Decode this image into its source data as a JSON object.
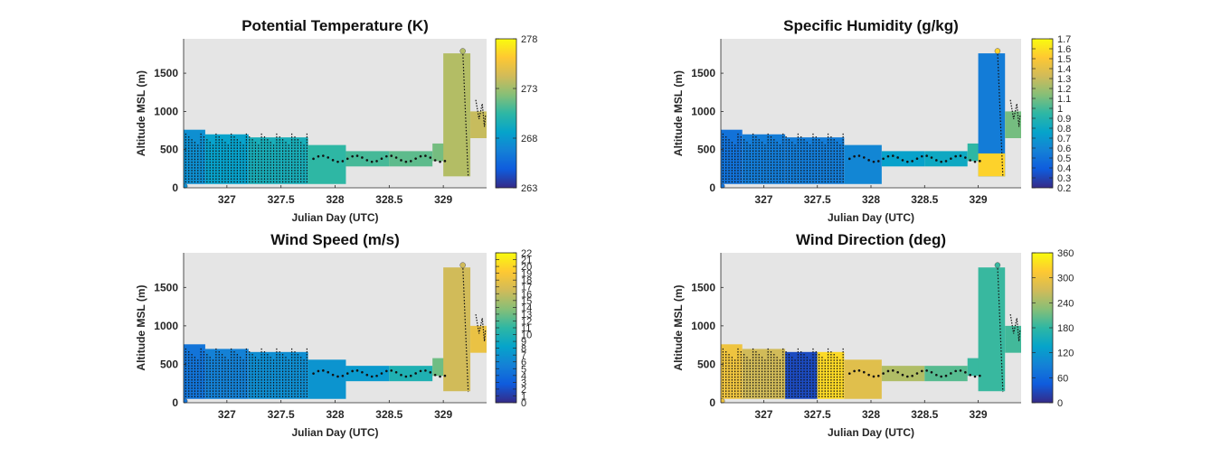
{
  "chart_data": [
    {
      "type": "heatmap",
      "title": "Potential Temperature (K)",
      "xlabel": "Julian Day (UTC)",
      "ylabel": "Altitude MSL (m)",
      "xlim": [
        326.6,
        329.4
      ],
      "ylim": [
        0,
        1950
      ],
      "xticks": [
        "327",
        "327.5",
        "328",
        "328.5",
        "329"
      ],
      "yticks": [
        "0",
        "500",
        "1000",
        "1500"
      ],
      "colorbar": {
        "min": 263,
        "max": 278,
        "ticks": [
          "263",
          "268",
          "273",
          "278"
        ]
      },
      "grid": false,
      "background": "#e5e5e5",
      "colormap": [
        "#352a87",
        "#0f5cdd",
        "#1481d6",
        "#06a4ca",
        "#2eb7a4",
        "#87bf77",
        "#d1bb59",
        "#fec832",
        "#f9fb0e"
      ],
      "segments": [
        {
          "x": [
            326.6,
            326.8
          ],
          "y": [
            50,
            760
          ],
          "value": 267.5
        },
        {
          "x": [
            326.8,
            327.2
          ],
          "y": [
            50,
            700
          ],
          "value": 268.5
        },
        {
          "x": [
            327.2,
            327.75
          ],
          "y": [
            50,
            660
          ],
          "value": 269.5
        },
        {
          "x": [
            327.75,
            328.1
          ],
          "y": [
            50,
            560
          ],
          "value": 270.5
        },
        {
          "x": [
            328.1,
            328.5
          ],
          "y": [
            280,
            480
          ],
          "value": 271.0
        },
        {
          "x": [
            328.5,
            328.9
          ],
          "y": [
            280,
            480
          ],
          "value": 271.5
        },
        {
          "x": [
            328.9,
            329.05
          ],
          "y": [
            350,
            580
          ],
          "value": 272.0
        },
        {
          "x": [
            329.0,
            329.25
          ],
          "y": [
            150,
            1760
          ],
          "value": 273.5
        },
        {
          "x": [
            329.25,
            329.4
          ],
          "y": [
            650,
            1000
          ],
          "value": 274.0
        }
      ]
    },
    {
      "type": "heatmap",
      "title": "Specific Humidity (g/kg)",
      "xlabel": "Julian Day (UTC)",
      "ylabel": "Altitude MSL (m)",
      "xlim": [
        326.6,
        329.4
      ],
      "ylim": [
        0,
        1950
      ],
      "xticks": [
        "327",
        "327.5",
        "328",
        "328.5",
        "329"
      ],
      "yticks": [
        "0",
        "500",
        "1000",
        "1500"
      ],
      "colorbar": {
        "min": 0.2,
        "max": 1.7,
        "ticks": [
          "0.2",
          "0.3",
          "0.4",
          "0.5",
          "0.6",
          "0.7",
          "0.8",
          "0.9",
          "1",
          "1.1",
          "1.2",
          "1.3",
          "1.4",
          "1.5",
          "1.6",
          "1.7"
        ]
      },
      "grid": false,
      "background": "#e5e5e5",
      "segments": [
        {
          "x": [
            326.6,
            326.8
          ],
          "y": [
            50,
            760
          ],
          "value": 0.5
        },
        {
          "x": [
            326.8,
            327.2
          ],
          "y": [
            50,
            700
          ],
          "value": 0.55
        },
        {
          "x": [
            327.2,
            327.75
          ],
          "y": [
            50,
            660
          ],
          "value": 0.55
        },
        {
          "x": [
            327.75,
            328.1
          ],
          "y": [
            50,
            560
          ],
          "value": 0.6
        },
        {
          "x": [
            328.1,
            328.5
          ],
          "y": [
            280,
            480
          ],
          "value": 0.75
        },
        {
          "x": [
            328.5,
            328.9
          ],
          "y": [
            280,
            480
          ],
          "value": 0.8
        },
        {
          "x": [
            328.9,
            329.05
          ],
          "y": [
            350,
            580
          ],
          "value": 0.95
        },
        {
          "x": [
            329.0,
            329.25
          ],
          "y": [
            150,
            1760
          ],
          "value": 0.55
        },
        {
          "x": [
            329.0,
            329.25
          ],
          "y": [
            150,
            450
          ],
          "value": 1.55
        },
        {
          "x": [
            329.25,
            329.4
          ],
          "y": [
            650,
            1000
          ],
          "value": 1.1
        }
      ]
    },
    {
      "type": "heatmap",
      "title": "Wind Speed (m/s)",
      "xlabel": "Julian Day (UTC)",
      "ylabel": "Altitude MSL (m)",
      "xlim": [
        326.6,
        329.4
      ],
      "ylim": [
        0,
        1950
      ],
      "xticks": [
        "327",
        "327.5",
        "328",
        "328.5",
        "329"
      ],
      "yticks": [
        "0",
        "500",
        "1000",
        "1500"
      ],
      "colorbar": {
        "min": 0,
        "max": 22,
        "ticks": [
          "0",
          "1",
          "2",
          "3",
          "4",
          "5",
          "6",
          "7",
          "8",
          "9",
          "10",
          "11",
          "12",
          "13",
          "14",
          "15",
          "16",
          "17",
          "18",
          "19",
          "20",
          "21",
          "22"
        ]
      },
      "grid": false,
      "background": "#e5e5e5",
      "segments": [
        {
          "x": [
            326.6,
            326.8
          ],
          "y": [
            50,
            760
          ],
          "value": 4.5
        },
        {
          "x": [
            326.8,
            327.2
          ],
          "y": [
            50,
            700
          ],
          "value": 5.5
        },
        {
          "x": [
            327.2,
            327.75
          ],
          "y": [
            50,
            660
          ],
          "value": 6.5
        },
        {
          "x": [
            327.75,
            328.1
          ],
          "y": [
            50,
            560
          ],
          "value": 7.0
        },
        {
          "x": [
            328.1,
            328.5
          ],
          "y": [
            280,
            480
          ],
          "value": 7.5
        },
        {
          "x": [
            328.5,
            328.9
          ],
          "y": [
            280,
            480
          ],
          "value": 10.0
        },
        {
          "x": [
            328.9,
            329.05
          ],
          "y": [
            350,
            580
          ],
          "value": 13.0
        },
        {
          "x": [
            329.0,
            329.25
          ],
          "y": [
            150,
            1760
          ],
          "value": 16.5
        },
        {
          "x": [
            329.25,
            329.4
          ],
          "y": [
            650,
            1000
          ],
          "value": 18.0
        }
      ]
    },
    {
      "type": "heatmap",
      "title": "Wind Direction (deg)",
      "xlabel": "Julian Day (UTC)",
      "ylabel": "Altitude MSL (m)",
      "xlim": [
        326.6,
        329.4
      ],
      "ylim": [
        0,
        1950
      ],
      "xticks": [
        "327",
        "327.5",
        "328",
        "328.5",
        "329"
      ],
      "yticks": [
        "0",
        "500",
        "1000",
        "1500"
      ],
      "colorbar": {
        "min": 0,
        "max": 360,
        "ticks": [
          "0",
          "60",
          "120",
          "180",
          "240",
          "300",
          "360"
        ]
      },
      "grid": false,
      "background": "#e5e5e5",
      "segments": [
        {
          "x": [
            326.6,
            326.8
          ],
          "y": [
            50,
            760
          ],
          "value": 300
        },
        {
          "x": [
            326.8,
            327.2
          ],
          "y": [
            50,
            700
          ],
          "value": 270
        },
        {
          "x": [
            327.2,
            327.5
          ],
          "y": [
            50,
            660
          ],
          "value": 30
        },
        {
          "x": [
            327.5,
            327.75
          ],
          "y": [
            50,
            660
          ],
          "value": 330
        },
        {
          "x": [
            327.75,
            328.1
          ],
          "y": [
            50,
            560
          ],
          "value": 285
        },
        {
          "x": [
            328.1,
            328.5
          ],
          "y": [
            280,
            480
          ],
          "value": 250
        },
        {
          "x": [
            328.5,
            328.9
          ],
          "y": [
            280,
            480
          ],
          "value": 200
        },
        {
          "x": [
            328.9,
            329.05
          ],
          "y": [
            350,
            580
          ],
          "value": 185
        },
        {
          "x": [
            329.0,
            329.25
          ],
          "y": [
            150,
            1760
          ],
          "value": 185
        },
        {
          "x": [
            329.25,
            329.4
          ],
          "y": [
            650,
            1000
          ],
          "value": 190
        }
      ]
    }
  ]
}
